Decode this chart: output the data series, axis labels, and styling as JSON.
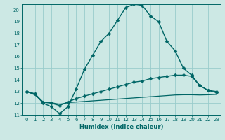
{
  "bg_color": "#cce8e4",
  "grid_color": "#99cccc",
  "line_color": "#006666",
  "xlabel": "Humidex (Indice chaleur)",
  "xlim": [
    -0.5,
    23.5
  ],
  "ylim": [
    11,
    20.5
  ],
  "yticks": [
    11,
    12,
    13,
    14,
    15,
    16,
    17,
    18,
    19,
    20
  ],
  "xticks": [
    0,
    1,
    2,
    3,
    4,
    5,
    6,
    7,
    8,
    9,
    10,
    11,
    12,
    13,
    14,
    15,
    16,
    17,
    18,
    19,
    20,
    21,
    22,
    23
  ],
  "series": [
    {
      "x": [
        0,
        1,
        2,
        3,
        4,
        5,
        6,
        7,
        8,
        9,
        10,
        11,
        12,
        13,
        14,
        15,
        16,
        17,
        18,
        19,
        20,
        21,
        22,
        23
      ],
      "y": [
        13,
        12.8,
        12.0,
        11.7,
        11.1,
        11.7,
        13.2,
        14.9,
        16.1,
        17.3,
        18.0,
        19.1,
        20.2,
        20.5,
        20.4,
        19.5,
        19.0,
        17.3,
        16.5,
        15.0,
        14.4,
        13.5,
        13.1,
        12.9
      ],
      "marker": "D",
      "markersize": 2.5,
      "linewidth": 1.0,
      "has_marker": true
    },
    {
      "x": [
        0,
        1,
        2,
        3,
        4,
        5,
        6,
        7,
        8,
        9,
        10,
        11,
        12,
        13,
        14,
        15,
        16,
        17,
        18,
        19,
        20,
        21,
        22,
        23
      ],
      "y": [
        13.0,
        12.8,
        12.1,
        12.0,
        11.8,
        12.1,
        12.4,
        12.6,
        12.8,
        13.0,
        13.2,
        13.4,
        13.6,
        13.8,
        13.9,
        14.1,
        14.2,
        14.3,
        14.4,
        14.4,
        14.3,
        13.5,
        13.1,
        13.0
      ],
      "marker": "D",
      "markersize": 2.5,
      "linewidth": 1.0,
      "has_marker": true
    },
    {
      "x": [
        0,
        1,
        2,
        3,
        4,
        5,
        6,
        7,
        8,
        9,
        10,
        11,
        12,
        13,
        14,
        15,
        16,
        17,
        18,
        19,
        20,
        21,
        22,
        23
      ],
      "y": [
        13.0,
        12.7,
        12.1,
        12.05,
        11.9,
        12.05,
        12.1,
        12.15,
        12.2,
        12.25,
        12.3,
        12.35,
        12.4,
        12.45,
        12.5,
        12.55,
        12.6,
        12.65,
        12.7,
        12.72,
        12.72,
        12.7,
        12.72,
        12.75
      ],
      "marker": null,
      "markersize": 0,
      "linewidth": 0.9,
      "has_marker": false
    }
  ]
}
